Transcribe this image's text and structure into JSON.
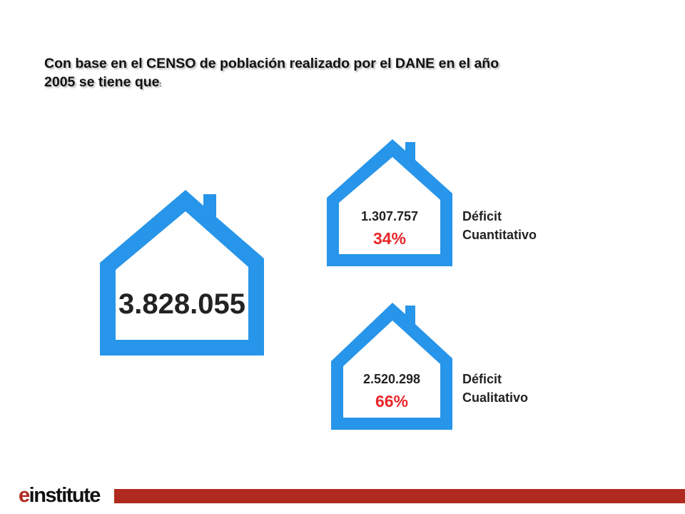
{
  "title": {
    "line1": "Con base  en el CENSO de población realizado por el DANE en el año",
    "line2": "2005 se tiene que",
    "suffix": ":"
  },
  "main_house": {
    "value": "3.828.055"
  },
  "quantitative": {
    "value": "1.307.757",
    "percent": "34%",
    "label_line1": "Déficit",
    "label_line2": "Cuantitativo"
  },
  "qualitative": {
    "value": "2.520.298",
    "percent": "66%",
    "label_line1": "Déficit",
    "label_line2": "Cualitativo"
  },
  "footer": {
    "logo_e": "e",
    "logo_rest": "institute"
  },
  "colors": {
    "house_blue": "#2795e9",
    "percent_red": "#e8262a",
    "footer_bar": "#b02a1f"
  }
}
